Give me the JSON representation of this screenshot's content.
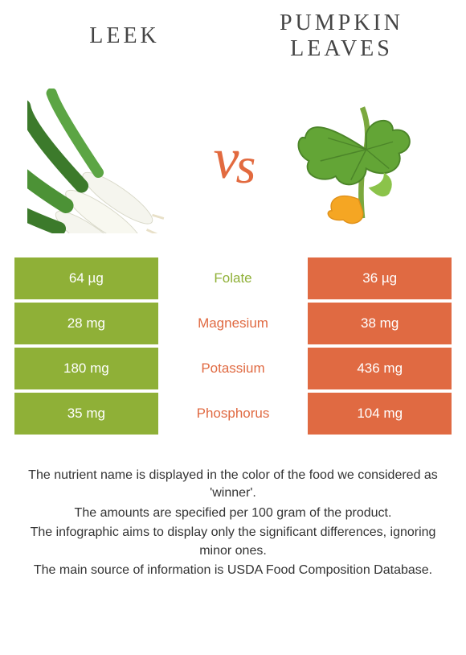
{
  "colors": {
    "left": "#8fb037",
    "right": "#e06a42",
    "vs": "#e26a3f",
    "text": "#333333",
    "bg": "#ffffff"
  },
  "header": {
    "left": "Leek",
    "right_line1": "Pumpkin",
    "right_line2": "Leaves"
  },
  "vs_label": "vs",
  "nutrients": [
    {
      "name": "Folate",
      "left": "64 µg",
      "right": "36 µg",
      "winner": "left"
    },
    {
      "name": "Magnesium",
      "left": "28 mg",
      "right": "38 mg",
      "winner": "right"
    },
    {
      "name": "Potassium",
      "left": "180 mg",
      "right": "436 mg",
      "winner": "right"
    },
    {
      "name": "Phosphorus",
      "left": "35 mg",
      "right": "104 mg",
      "winner": "right"
    }
  ],
  "footer": [
    "The nutrient name is displayed in the color of the food we considered as 'winner'.",
    "The amounts are specified per 100 gram of the product.",
    "The infographic aims to display only the significant differences, ignoring minor ones.",
    "The main source of information is USDA Food Composition Database."
  ]
}
